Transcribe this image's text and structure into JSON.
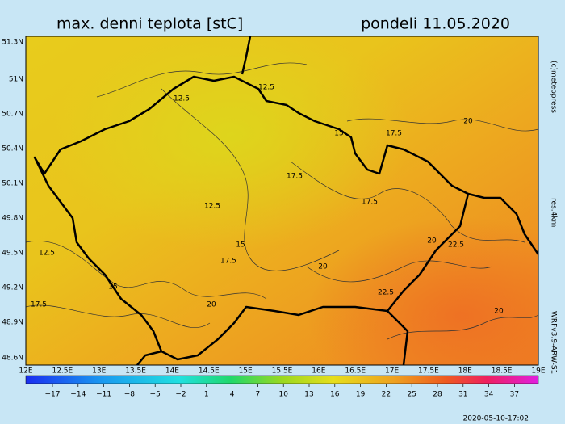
{
  "header": {
    "title": "max. denni teplota [stC]",
    "date": "pondeli 11.05.2020"
  },
  "side_labels": {
    "copyright": "(c)meteopress",
    "resolution": "res.4km",
    "model": "WRFv3.9-ARW-S1"
  },
  "footer": {
    "timestamp": "2020-05-10-17:02"
  },
  "latitude_labels": [
    "51.3N",
    "51N",
    "50.7N",
    "50.4N",
    "50.1N",
    "49.8N",
    "49.5N",
    "49.2N",
    "48.9N",
    "48.6N"
  ],
  "longitude_labels": [
    "12E",
    "12.5E",
    "13E",
    "13.5E",
    "14E",
    "14.5E",
    "15E",
    "15.5E",
    "16E",
    "16.5E",
    "17E",
    "17.5E",
    "18E",
    "18.5E",
    "19E"
  ],
  "colorbar_labels": [
    "−17",
    "−14",
    "−11",
    "−8",
    "−5",
    "−2",
    "1",
    "4",
    "7",
    "10",
    "13",
    "16",
    "19",
    "22",
    "25",
    "28",
    "31",
    "34",
    "37"
  ],
  "contour_labels": [
    "12.5",
    "12.5",
    "12.5",
    "12.5",
    "15",
    "15",
    "15",
    "17.5",
    "17.5",
    "17.5",
    "17.5",
    "17.5",
    "20",
    "20",
    "20",
    "20",
    "20",
    "22.5",
    "22.5",
    "22.5"
  ]
}
